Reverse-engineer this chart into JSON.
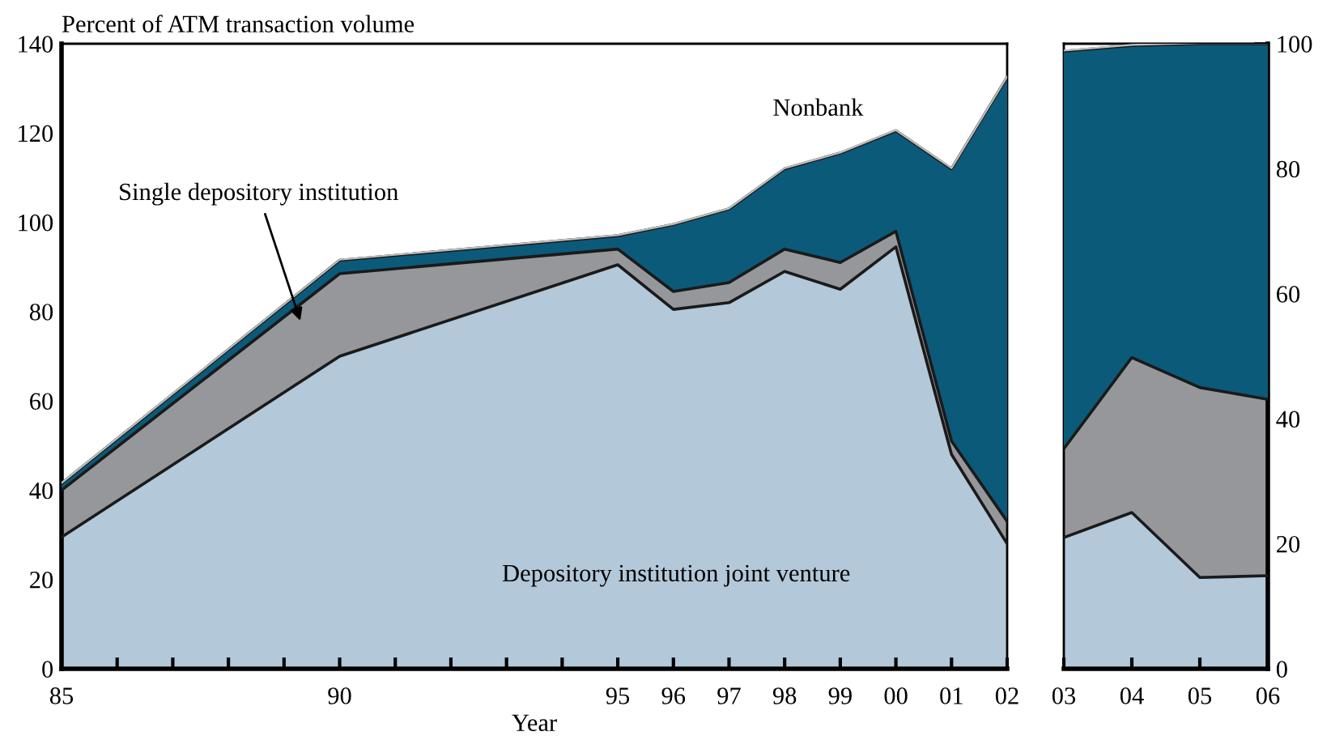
{
  "chart_data": [
    {
      "type": "area",
      "stacked": true,
      "ylabel": "Percent of ATM transaction volume",
      "xlabel": "Year",
      "x": [
        1985,
        1990,
        1995,
        1996,
        1997,
        1998,
        1999,
        2000,
        2001,
        2002
      ],
      "series": [
        {
          "name": "Depository institution joint venture",
          "color": "#b3c8d9",
          "values": [
            29.5,
            70,
            90.5,
            80.5,
            82,
            89,
            85,
            94.5,
            48,
            28
          ]
        },
        {
          "name": "Single depository institution",
          "color": "#96979b",
          "values": [
            10.5,
            18.5,
            3.5,
            4,
            4.5,
            5,
            6,
            3.5,
            3,
            5
          ]
        },
        {
          "name": "Nonbank",
          "color": "#0b5a7a",
          "values": [
            1.5,
            3,
            3,
            15,
            16.5,
            18,
            24.5,
            22.5,
            61,
            99.5
          ]
        }
      ],
      "xlim": [
        1985,
        2002
      ],
      "xticks": [
        {
          "value": 1985,
          "label": "85"
        },
        {
          "value": 1986,
          "label": null
        },
        {
          "value": 1987,
          "label": null
        },
        {
          "value": 1988,
          "label": null
        },
        {
          "value": 1989,
          "label": null
        },
        {
          "value": 1990,
          "label": "90"
        },
        {
          "value": 1991,
          "label": null
        },
        {
          "value": 1992,
          "label": null
        },
        {
          "value": 1993,
          "label": null
        },
        {
          "value": 1994,
          "label": null
        },
        {
          "value": 1995,
          "label": "95"
        },
        {
          "value": 1996,
          "label": "96"
        },
        {
          "value": 1997,
          "label": "97"
        },
        {
          "value": 1998,
          "label": "98"
        },
        {
          "value": 1999,
          "label": "99"
        },
        {
          "value": 2000,
          "label": "00"
        },
        {
          "value": 2001,
          "label": "01"
        },
        {
          "value": 2002,
          "label": "02"
        }
      ],
      "ylim": [
        0,
        140
      ],
      "yticks": [
        0,
        20,
        40,
        60,
        80,
        100,
        120,
        140
      ],
      "grid": false,
      "legend": false
    },
    {
      "type": "area",
      "stacked": true,
      "x": [
        2003,
        2004,
        2005,
        2006
      ],
      "series": [
        {
          "color": "#b3c8d9",
          "axis": "y2",
          "values": [
            21,
            25,
            14.6,
            14.9
          ]
        },
        {
          "color": "#96979b",
          "axis": "y2",
          "values": [
            14.2,
            24.8,
            30.4,
            28.2
          ]
        },
        {
          "color": "#0b5a7a",
          "axis": "y2",
          "values": [
            63.6,
            49.9,
            55,
            56.9
          ]
        }
      ],
      "xlim": [
        2003,
        2006
      ],
      "xticks": [
        {
          "value": 2003,
          "label": "03"
        },
        {
          "value": 2004,
          "label": "04"
        },
        {
          "value": 2005,
          "label": "05"
        },
        {
          "value": 2006,
          "label": "06"
        }
      ],
      "y2lim": [
        0,
        100
      ],
      "y2ticks": [
        0,
        20,
        40,
        60,
        80,
        100
      ],
      "grid": false,
      "legend": false
    }
  ]
}
